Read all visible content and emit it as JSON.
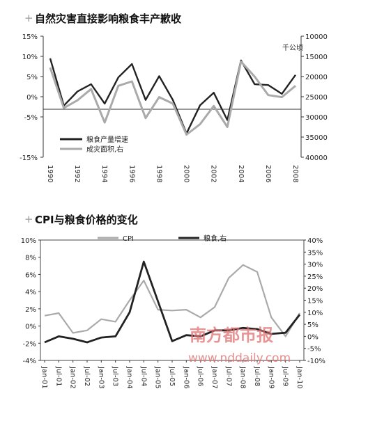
{
  "watermark": {
    "brand": "南方都市报",
    "url": "www.nddaily.com"
  },
  "chart_data": [
    {
      "type": "line",
      "title": "自然灾害直接影响粮食丰产歉收",
      "y2label": "千公顷",
      "x": [
        "1990",
        "1991",
        "1992",
        "1993",
        "1994",
        "1995",
        "1996",
        "1997",
        "1998",
        "1999",
        "2000",
        "2001",
        "2002",
        "2003",
        "2004",
        "2005",
        "2006",
        "2007",
        "2008"
      ],
      "xticks": [
        "1990",
        "1992",
        "1994",
        "1996",
        "1998",
        "2000",
        "2002",
        "2004",
        "2006",
        "2008"
      ],
      "ylim": [
        -15,
        15
      ],
      "yticks": [
        "15%",
        "10%",
        "5%",
        "0%",
        "-5%",
        "-15%"
      ],
      "y2lim": [
        10000,
        40000
      ],
      "y2ticks": [
        "10000",
        "15000",
        "20000",
        "25000",
        "30000",
        "35000",
        "40000"
      ],
      "legend": "bottom-left",
      "series": [
        {
          "name": "粮食产量增速",
          "axis": "left",
          "color": "#222222",
          "values": [
            9.5,
            -2.2,
            1.3,
            3.1,
            -1.7,
            4.8,
            8.1,
            -0.8,
            5.1,
            -0.8,
            -9.1,
            -2.1,
            1.0,
            -5.8,
            9.0,
            3.1,
            2.9,
            0.7,
            5.4
          ]
        },
        {
          "name": "成灾面积,右",
          "axis": "right",
          "color": "#aaaaaa",
          "values": [
            17800,
            27800,
            25900,
            23100,
            31400,
            22300,
            21200,
            30300,
            25100,
            26700,
            34400,
            31800,
            27300,
            32500,
            16300,
            20000,
            24600,
            25100,
            22300
          ]
        }
      ]
    },
    {
      "type": "line",
      "title": "CPI与粮食价格的变化",
      "x": [
        "Jan-01",
        "Jul-01",
        "Jan-02",
        "Jul-02",
        "Jan-03",
        "Jul-03",
        "Jan-04",
        "Jul-04",
        "Jan-05",
        "Jul-05",
        "Jan-06",
        "Jul-06",
        "Jan-07",
        "Jul-07",
        "Jan-08",
        "Jul-08",
        "Jan-09",
        "Jul-09",
        "Jan-10"
      ],
      "ylim": [
        -4,
        10
      ],
      "yticks": [
        "10%",
        "8%",
        "6%",
        "4%",
        "2%",
        "0%",
        "-2%",
        "-4%"
      ],
      "y2lim": [
        -10,
        40
      ],
      "y2ticks": [
        "40%",
        "35%",
        "30%",
        "25%",
        "20%",
        "15%",
        "10%",
        "5%",
        "0%",
        "-5%",
        "-10%"
      ],
      "legend": "top",
      "series": [
        {
          "name": "CPI",
          "axis": "left",
          "color": "#aaaaaa",
          "values": [
            1.2,
            1.5,
            -0.8,
            -0.5,
            0.8,
            0.5,
            3.0,
            5.3,
            1.9,
            1.8,
            1.9,
            1.0,
            2.2,
            5.6,
            7.1,
            6.3,
            1.0,
            -1.2,
            1.5
          ]
        },
        {
          "name": "粮食,右",
          "axis": "right",
          "color": "#222222",
          "values": [
            -2.5,
            0.0,
            -1.0,
            -2.5,
            -0.5,
            0.0,
            10.0,
            31.0,
            14.5,
            -2.0,
            0.5,
            0.0,
            2.5,
            2.5,
            3.5,
            3.0,
            1.0,
            1.5,
            9.0
          ]
        }
      ]
    }
  ]
}
